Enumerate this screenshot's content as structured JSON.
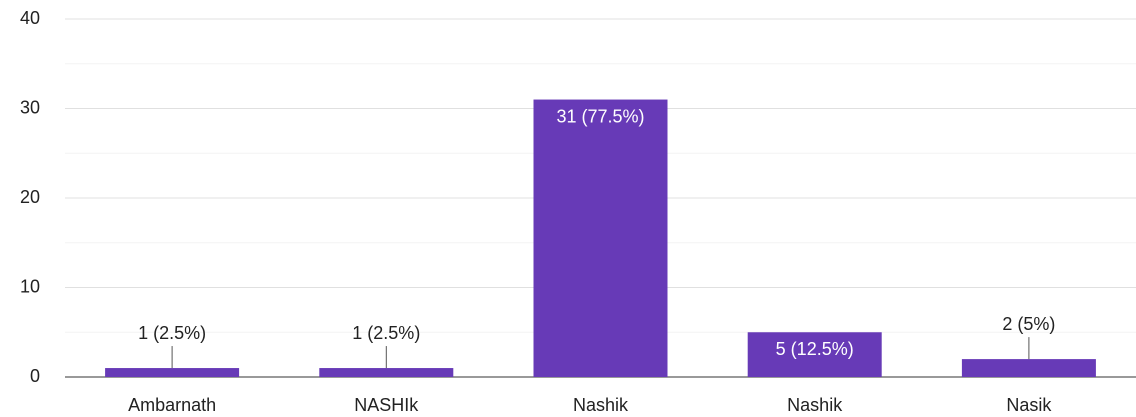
{
  "chart_data": {
    "type": "bar",
    "categories": [
      "Ambarnath",
      "NASHIk",
      "Nashik",
      "Nashik",
      "Nasik"
    ],
    "values": [
      1,
      1,
      31,
      5,
      2
    ],
    "value_labels": [
      "1 (2.5%)",
      "1 (2.5%)",
      "31 (77.5%)",
      "5 (12.5%)",
      "2 (5%)"
    ],
    "color": "#673ab7",
    "ylim": [
      0,
      40
    ],
    "yticks": [
      0,
      10,
      20,
      30,
      40
    ],
    "minor_yticks": [
      5,
      15,
      25,
      35
    ],
    "grid": true
  }
}
